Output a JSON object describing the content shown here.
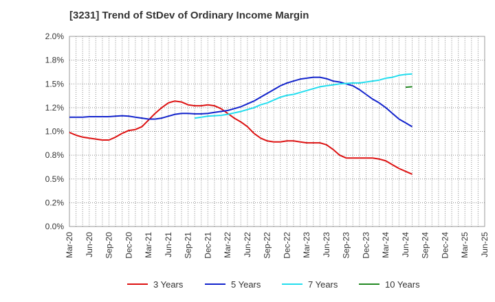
{
  "chart_data": {
    "type": "line",
    "title": "[3231]  Trend of StDev of Ordinary Income Margin",
    "xlabel": "",
    "ylabel": "",
    "ylim": [
      0,
      2.0
    ],
    "y_ticks": [
      "0.0%",
      "0.2%",
      "0.5%",
      "0.8%",
      "1.0%",
      "1.2%",
      "1.5%",
      "1.8%",
      "2.0%"
    ],
    "x_ticks": [
      "Mar-20",
      "Jun-20",
      "Sep-20",
      "Dec-20",
      "Mar-21",
      "Jun-21",
      "Sep-21",
      "Dec-21",
      "Mar-22",
      "Jun-22",
      "Sep-22",
      "Dec-22",
      "Mar-23",
      "Jun-23",
      "Sep-23",
      "Dec-23",
      "Mar-24",
      "Jun-24",
      "Sep-24",
      "Dec-24",
      "Mar-25",
      "Jun-25"
    ],
    "grid": "dotted",
    "legend_position": "bottom",
    "series": [
      {
        "name": "3 Years",
        "color": "#dd1111",
        "values": [
          0.99,
          0.96,
          0.94,
          0.93,
          0.92,
          0.91,
          0.91,
          0.94,
          0.98,
          1.01,
          1.02,
          1.05,
          1.12,
          1.19,
          1.25,
          1.3,
          1.32,
          1.31,
          1.28,
          1.27,
          1.27,
          1.28,
          1.27,
          1.24,
          1.19,
          1.14,
          1.1,
          1.05,
          0.98,
          0.93,
          0.9,
          0.89,
          0.89,
          0.9,
          0.9,
          0.89,
          0.88,
          0.88,
          0.88,
          0.86,
          0.81,
          0.75,
          0.72,
          0.72,
          0.72,
          0.72,
          0.72,
          0.71,
          0.69,
          0.65,
          0.61,
          0.58,
          0.55
        ]
      },
      {
        "name": "5 Years",
        "color": "#1122cc",
        "values": [
          1.15,
          1.15,
          1.15,
          1.155,
          1.155,
          1.155,
          1.155,
          1.16,
          1.165,
          1.16,
          1.15,
          1.14,
          1.13,
          1.13,
          1.14,
          1.16,
          1.18,
          1.19,
          1.19,
          1.185,
          1.185,
          1.19,
          1.2,
          1.21,
          1.22,
          1.24,
          1.26,
          1.29,
          1.32,
          1.36,
          1.4,
          1.44,
          1.48,
          1.51,
          1.53,
          1.55,
          1.56,
          1.57,
          1.57,
          1.555,
          1.53,
          1.52,
          1.5,
          1.48,
          1.44,
          1.39,
          1.34,
          1.3,
          1.25,
          1.19,
          1.13,
          1.09,
          1.05
        ]
      },
      {
        "name": "7 Years",
        "color": "#22ddee",
        "values": [
          null,
          null,
          null,
          null,
          null,
          null,
          null,
          null,
          null,
          null,
          null,
          null,
          null,
          null,
          null,
          null,
          null,
          null,
          null,
          1.14,
          1.15,
          1.16,
          1.165,
          1.17,
          1.18,
          1.195,
          1.21,
          1.23,
          1.25,
          1.28,
          1.3,
          1.33,
          1.36,
          1.38,
          1.39,
          1.41,
          1.43,
          1.45,
          1.47,
          1.48,
          1.49,
          1.5,
          1.505,
          1.51,
          1.51,
          1.52,
          1.53,
          1.54,
          1.56,
          1.57,
          1.59,
          1.6,
          1.605
        ]
      },
      {
        "name": "10 Years",
        "color": "#228822",
        "values": [
          null,
          null,
          null,
          null,
          null,
          null,
          null,
          null,
          null,
          null,
          null,
          null,
          null,
          null,
          null,
          null,
          null,
          null,
          null,
          null,
          null,
          null,
          null,
          null,
          null,
          null,
          null,
          null,
          null,
          null,
          null,
          null,
          null,
          null,
          null,
          null,
          null,
          null,
          null,
          null,
          null,
          null,
          null,
          null,
          null,
          null,
          null,
          null,
          null,
          null,
          null,
          1.465,
          1.47
        ]
      }
    ]
  }
}
